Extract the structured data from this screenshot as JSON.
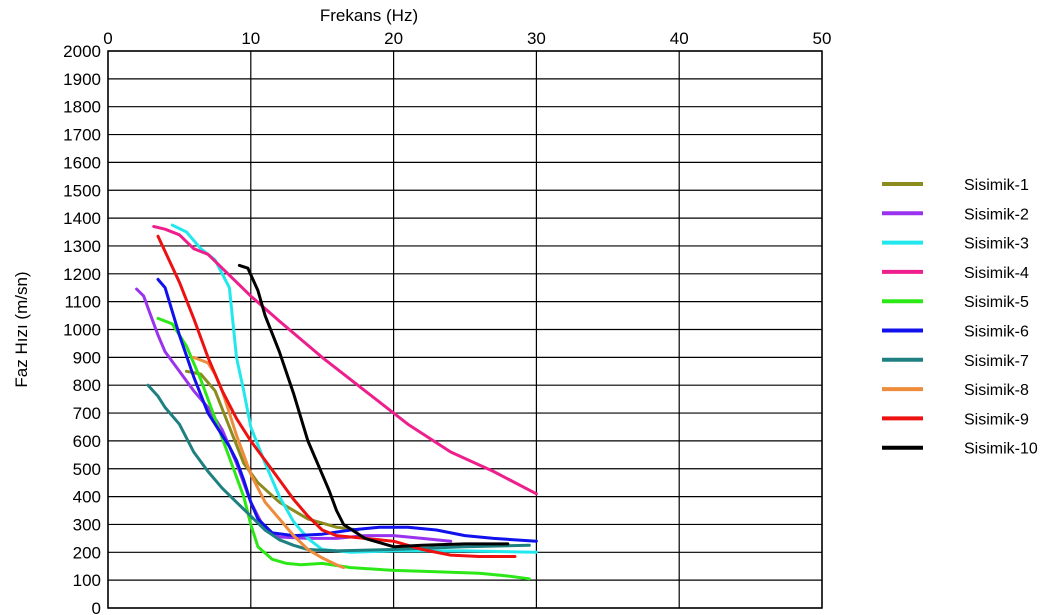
{
  "chart_data": {
    "type": "line",
    "xlabel": "Frekans (Hz)",
    "ylabel": "Faz Hızı (m/sn)",
    "xlim": [
      0,
      50
    ],
    "ylim": [
      0,
      2000
    ],
    "x_ticks": [
      0,
      10,
      20,
      30,
      40,
      50
    ],
    "y_ticks": [
      0,
      100,
      200,
      300,
      400,
      500,
      600,
      700,
      800,
      900,
      1000,
      1100,
      1200,
      1300,
      1400,
      1500,
      1600,
      1700,
      1800,
      1900,
      2000
    ],
    "x_axis_position": "top",
    "grid": "major x and y",
    "legend_position": "right",
    "series": [
      {
        "name": "Sisimik-1",
        "color": "#8b8b1e",
        "x": [
          5.5,
          6.5,
          7.5,
          8.5,
          9.5,
          10.5,
          12,
          14,
          16,
          17.5
        ],
        "y": [
          850,
          840,
          780,
          650,
          520,
          450,
          380,
          320,
          290,
          280
        ]
      },
      {
        "name": "Sisimik-2",
        "color": "#9933ee",
        "x": [
          2.0,
          2.5,
          3.0,
          3.5,
          4.0,
          5.0,
          6.0,
          7.0,
          8.0,
          9.0,
          10.0,
          11.0,
          12.0,
          14.0,
          16.0,
          18.0,
          20.0,
          22.0,
          24.0
        ],
        "y": [
          1145,
          1120,
          1050,
          980,
          920,
          850,
          780,
          720,
          640,
          520,
          380,
          280,
          255,
          250,
          250,
          260,
          260,
          250,
          240
        ]
      },
      {
        "name": "Sisimik-3",
        "color": "#22e8ee",
        "x": [
          4.5,
          5.5,
          6.5,
          7.5,
          8.5,
          9.0,
          9.5,
          10.0,
          11.0,
          12.0,
          13.0,
          14.0,
          15.0,
          17.0,
          20.0,
          25.0,
          30.0
        ],
        "y": [
          1375,
          1350,
          1290,
          1250,
          1150,
          900,
          780,
          650,
          520,
          400,
          310,
          250,
          210,
          200,
          205,
          205,
          200
        ]
      },
      {
        "name": "Sisimik-4",
        "color": "#ee1f8c",
        "x": [
          3.2,
          4.0,
          5.0,
          6.0,
          7.0,
          8.0,
          10.0,
          12.0,
          15.0,
          18.0,
          21.0,
          24.0,
          27.0,
          30.0
        ],
        "y": [
          1370,
          1360,
          1340,
          1290,
          1270,
          1220,
          1120,
          1030,
          900,
          780,
          660,
          560,
          490,
          410
        ]
      },
      {
        "name": "Sisimik-5",
        "color": "#2ce817",
        "x": [
          3.5,
          4.5,
          5.5,
          6.5,
          7.5,
          8.5,
          9.5,
          10.0,
          10.5,
          11.5,
          12.5,
          13.5,
          15.0,
          17.0,
          20.0,
          23.0,
          26.0,
          28.0,
          29.5
        ],
        "y": [
          1040,
          1020,
          940,
          820,
          680,
          540,
          400,
          300,
          220,
          175,
          160,
          155,
          160,
          145,
          135,
          130,
          125,
          115,
          105
        ]
      },
      {
        "name": "Sisimik-6",
        "color": "#1111ee",
        "x": [
          3.5,
          4.0,
          5.0,
          6.0,
          7.0,
          8.0,
          8.5,
          9.0,
          9.5,
          10.0,
          10.5,
          11.5,
          13.0,
          15.0,
          17.0,
          19.0,
          21.0,
          23.0,
          25.0,
          27.0,
          30.0
        ],
        "y": [
          1180,
          1150,
          980,
          830,
          700,
          620,
          580,
          530,
          460,
          380,
          320,
          270,
          260,
          265,
          280,
          290,
          290,
          280,
          260,
          250,
          240
        ]
      },
      {
        "name": "Sisimik-7",
        "color": "#1e8080",
        "x": [
          2.8,
          3.5,
          4.0,
          5.0,
          6.0,
          7.0,
          8.0,
          9.0,
          10.0,
          11.0,
          12.0,
          13.0,
          14.0,
          16.0,
          20.0,
          25.0,
          29.5
        ],
        "y": [
          800,
          760,
          720,
          660,
          560,
          490,
          430,
          380,
          330,
          280,
          245,
          225,
          210,
          205,
          210,
          220,
          225
        ]
      },
      {
        "name": "Sisimik-8",
        "color": "#ee8c3c",
        "x": [
          6.0,
          7.0,
          7.5,
          8.0,
          8.5,
          9.0,
          10.0,
          11.0,
          12.0,
          13.0,
          14.0,
          15.0,
          16.0,
          16.5
        ],
        "y": [
          900,
          880,
          840,
          780,
          700,
          620,
          480,
          380,
          320,
          260,
          210,
          180,
          155,
          145
        ]
      },
      {
        "name": "Sisimik-9",
        "color": "#ee1111",
        "x": [
          3.5,
          4.0,
          5.0,
          6.0,
          7.0,
          8.0,
          9.0,
          10.0,
          11.0,
          12.0,
          13.0,
          14.0,
          15.0,
          16.0,
          18.0,
          20.0,
          22.0,
          24.0,
          26.0,
          28.5
        ],
        "y": [
          1335,
          1280,
          1170,
          1040,
          900,
          780,
          680,
          600,
          530,
          460,
          390,
          330,
          280,
          260,
          250,
          240,
          210,
          190,
          185,
          185
        ]
      },
      {
        "name": "Sisimik-10",
        "color": "#000000",
        "x": [
          9.2,
          9.8,
          10.5,
          11.0,
          12.0,
          13.0,
          14.0,
          15.0,
          15.5,
          16.0,
          16.5,
          18.0,
          20.0,
          22.0,
          25.0,
          28.0
        ],
        "y": [
          1230,
          1220,
          1140,
          1050,
          920,
          770,
          600,
          480,
          420,
          350,
          300,
          250,
          220,
          225,
          230,
          230
        ]
      }
    ]
  }
}
